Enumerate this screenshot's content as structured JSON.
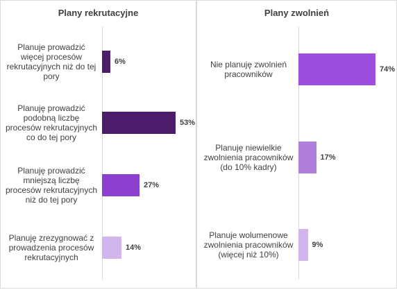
{
  "chart_data": [
    {
      "type": "bar",
      "orientation": "horizontal",
      "title": "Plany rekrutacyjne",
      "categories": [
        "Planuje prowadzić więcej procesów rekrutacyjnych niż do tej pory",
        "Planuję prowadzić podobną liczbę procesów rekrutacyjnych co do tej pory",
        "Planuję prowadzić mniejszą liczbę procesów rekrutacyjnych niż do tej pory",
        "Planuję zrezygnować z prowadzenia procesów rekrutacyjnych"
      ],
      "values": [
        6,
        53,
        27,
        14
      ],
      "value_labels": [
        "6%",
        "53%",
        "27%",
        "14%"
      ],
      "colors": [
        "#4b1d6b",
        "#4b1d6b",
        "#8b3fcf",
        "#d3b5ee"
      ],
      "unit": "%",
      "xlim": [
        0,
        100
      ],
      "grid": false,
      "legend": "none"
    },
    {
      "type": "bar",
      "orientation": "horizontal",
      "title": "Plany zwolnień",
      "categories": [
        "Nie planuję zwolnień pracowników",
        "Planuję niewielkie zwolnienia pracowników (do 10% kadry)",
        "Planuje wolumenowe zwolnienia pracowników (więcej niż 10%)"
      ],
      "values": [
        74,
        17,
        9
      ],
      "value_labels": [
        "74%",
        "17%",
        "9%"
      ],
      "colors": [
        "#9b4fdc",
        "#b07fde",
        "#d3b5ee"
      ],
      "unit": "%",
      "xlim": [
        0,
        100
      ],
      "grid": false,
      "legend": "none"
    }
  ]
}
